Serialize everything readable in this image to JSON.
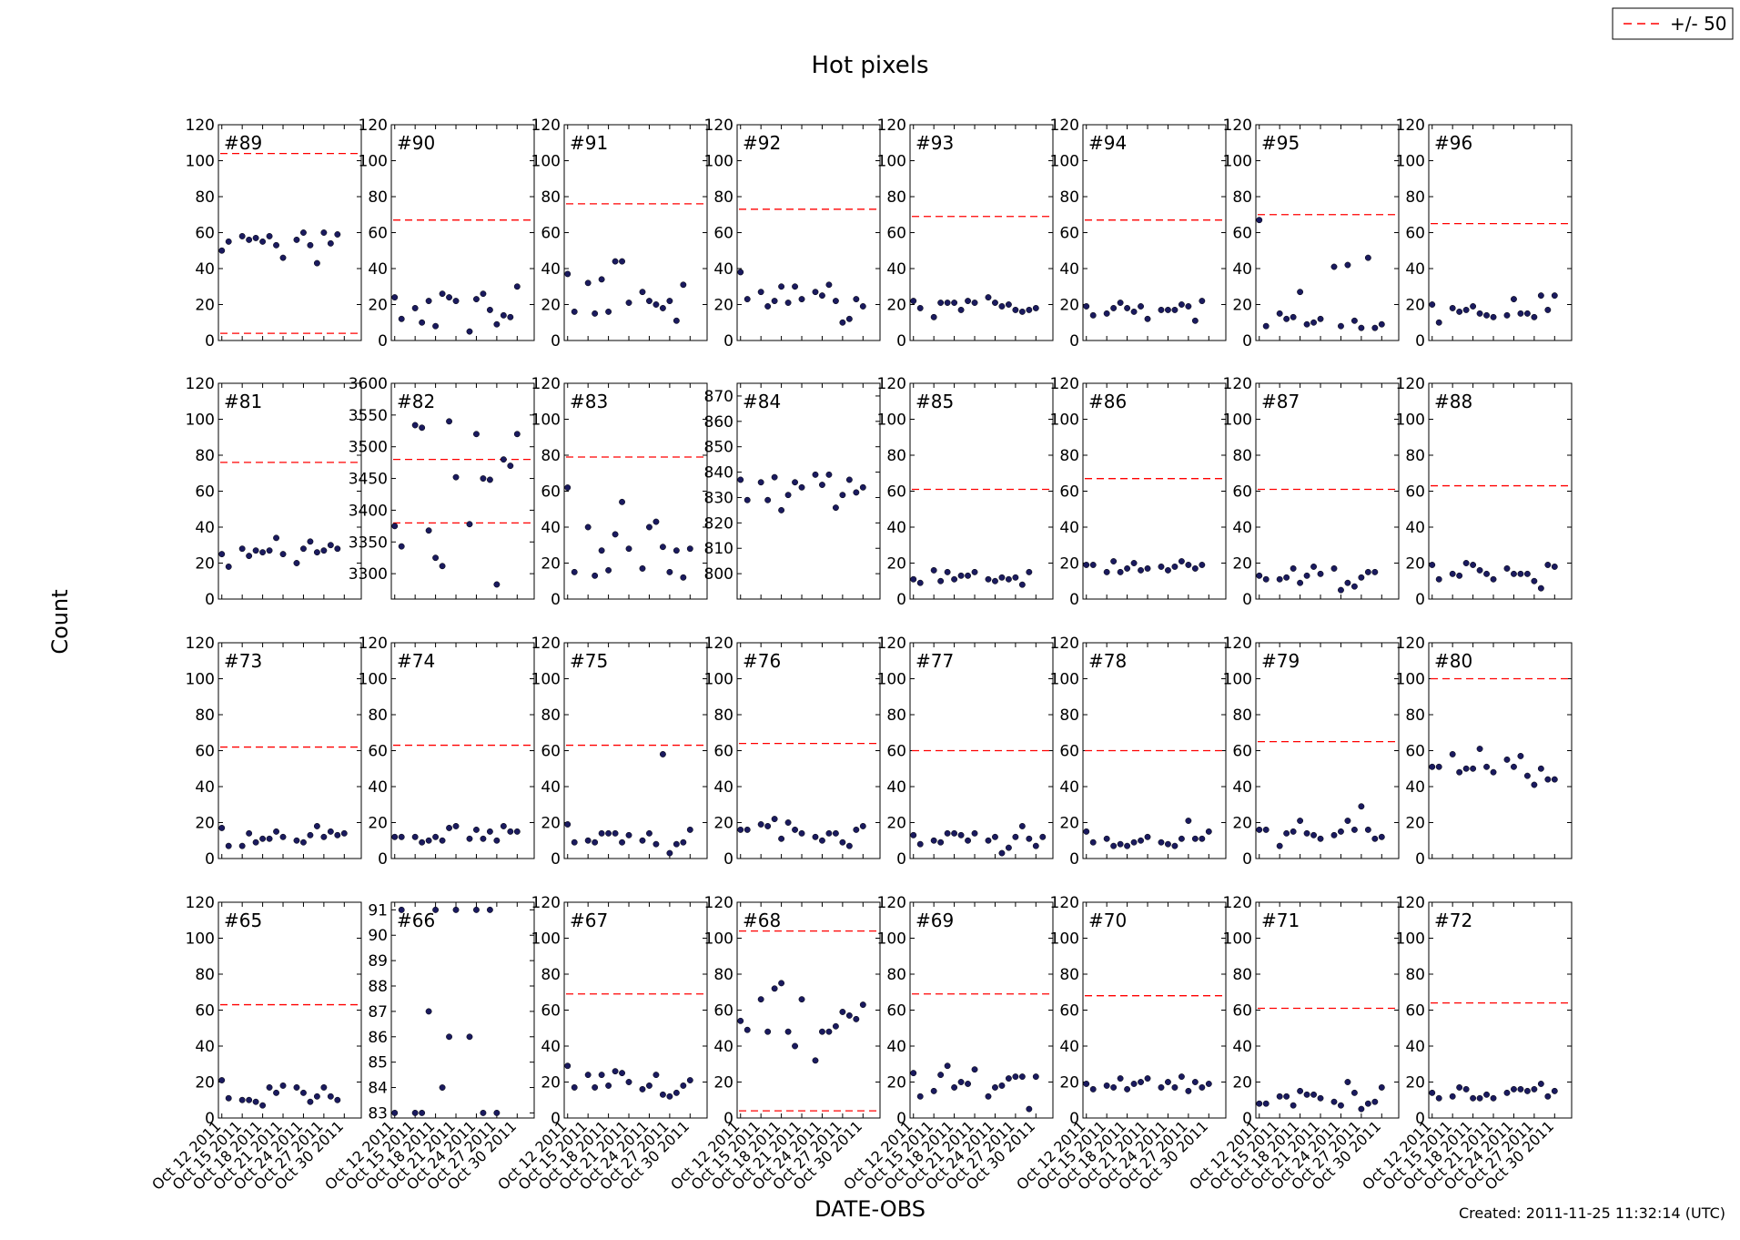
{
  "title": "Hot pixels",
  "ylabel": "Count",
  "xlabel": "DATE-OBS",
  "footer": "Created: 2011-11-25 11:32:14 (UTC)",
  "legend": {
    "label": "+/- 50",
    "line_color": "#ff0000",
    "placement": "top-right"
  },
  "colors": {
    "point": "#1a1a5e",
    "limit": "#ff0000"
  },
  "chart_data": {
    "type": "scatter",
    "grid": false,
    "x_tick_labels": [
      "Oct 12 2011",
      "Oct 15 2011",
      "Oct 18 2011",
      "Oct 21 2011",
      "Oct 24 2011",
      "Oct 27 2011",
      "Oct 30 2011"
    ],
    "x_days": [
      1,
      2,
      4,
      5,
      6,
      7,
      8,
      9,
      10,
      12,
      13,
      14,
      15,
      16,
      17,
      18,
      19,
      20,
      21
    ],
    "panels": [
      {
        "name": "#89",
        "ylim": [
          0,
          120
        ],
        "yticks": [
          0,
          20,
          40,
          60,
          80,
          100,
          120
        ],
        "limits": [
          104,
          4
        ],
        "values": [
          50,
          55,
          58,
          56,
          57,
          55,
          58,
          53,
          46,
          56,
          60,
          53,
          43,
          60,
          54,
          59
        ]
      },
      {
        "name": "#90",
        "ylim": [
          0,
          120
        ],
        "yticks": [
          0,
          20,
          40,
          60,
          80,
          100,
          120
        ],
        "limits": [
          67
        ],
        "values": [
          24,
          12,
          18,
          10,
          22,
          8,
          26,
          24,
          22,
          5,
          23,
          26,
          17,
          9,
          14,
          13,
          30
        ]
      },
      {
        "name": "#91",
        "ylim": [
          0,
          120
        ],
        "yticks": [
          0,
          20,
          40,
          60,
          80,
          100,
          120
        ],
        "limits": [
          76
        ],
        "values": [
          37,
          16,
          32,
          15,
          34,
          16,
          44,
          44,
          21,
          27,
          22,
          20,
          18,
          22,
          11,
          31
        ]
      },
      {
        "name": "#92",
        "ylim": [
          0,
          120
        ],
        "yticks": [
          0,
          20,
          40,
          60,
          80,
          100,
          120
        ],
        "limits": [
          73
        ],
        "values": [
          38,
          23,
          27,
          19,
          22,
          30,
          21,
          30,
          23,
          27,
          25,
          31,
          22,
          10,
          12,
          23,
          19
        ]
      },
      {
        "name": "#93",
        "ylim": [
          0,
          120
        ],
        "yticks": [
          0,
          20,
          40,
          60,
          80,
          100,
          120
        ],
        "limits": [
          69
        ],
        "values": [
          22,
          18,
          13,
          21,
          21,
          21,
          17,
          22,
          21,
          24,
          21,
          19,
          20,
          17,
          16,
          17,
          18
        ]
      },
      {
        "name": "#94",
        "ylim": [
          0,
          120
        ],
        "yticks": [
          0,
          20,
          40,
          60,
          80,
          100,
          120
        ],
        "limits": [
          67
        ],
        "values": [
          19,
          14,
          15,
          18,
          21,
          18,
          16,
          19,
          12,
          17,
          17,
          17,
          20,
          19,
          11,
          22
        ]
      },
      {
        "name": "#95",
        "ylim": [
          0,
          120
        ],
        "yticks": [
          0,
          20,
          40,
          60,
          80,
          100,
          120
        ],
        "limits": [
          70
        ],
        "values": [
          67,
          8,
          15,
          12,
          13,
          27,
          9,
          10,
          12,
          41,
          8,
          42,
          11,
          7,
          46,
          7,
          9
        ]
      },
      {
        "name": "#96",
        "ylim": [
          0,
          120
        ],
        "yticks": [
          0,
          20,
          40,
          60,
          80,
          100,
          120
        ],
        "limits": [
          65
        ],
        "values": [
          20,
          10,
          18,
          16,
          17,
          19,
          15,
          14,
          13,
          14,
          23,
          15,
          15,
          13,
          25,
          17,
          25
        ]
      },
      {
        "name": "#81",
        "ylim": [
          0,
          120
        ],
        "yticks": [
          0,
          20,
          40,
          60,
          80,
          100,
          120
        ],
        "limits": [
          76
        ],
        "values": [
          25,
          18,
          28,
          24,
          27,
          26,
          27,
          34,
          25,
          20,
          28,
          32,
          26,
          27,
          30,
          28
        ]
      },
      {
        "name": "#82",
        "ylim": [
          3260,
          3600
        ],
        "yticks": [
          3300,
          3350,
          3400,
          3450,
          3500,
          3550,
          3600
        ],
        "limits": [
          3480,
          3380
        ],
        "values": [
          3375,
          3343,
          3534,
          3530,
          3368,
          3325,
          3312,
          3540,
          3452,
          3378,
          3520,
          3450,
          3448,
          3283,
          3480,
          3470,
          3520
        ]
      },
      {
        "name": "#83",
        "ylim": [
          0,
          120
        ],
        "yticks": [
          0,
          20,
          40,
          60,
          80,
          100,
          120
        ],
        "limits": [
          79
        ],
        "values": [
          62,
          15,
          40,
          13,
          27,
          16,
          36,
          54,
          28,
          17,
          40,
          43,
          29,
          15,
          27,
          12,
          28
        ]
      },
      {
        "name": "#84",
        "ylim": [
          790,
          875
        ],
        "yticks": [
          800,
          810,
          820,
          830,
          840,
          850,
          860,
          870
        ],
        "limits": [],
        "values": [
          837,
          829,
          836,
          829,
          838,
          825,
          831,
          836,
          834,
          839,
          835,
          839,
          826,
          831,
          837,
          832,
          834
        ]
      },
      {
        "name": "#85",
        "ylim": [
          0,
          120
        ],
        "yticks": [
          0,
          20,
          40,
          60,
          80,
          100,
          120
        ],
        "limits": [
          61
        ],
        "values": [
          11,
          9,
          16,
          10,
          15,
          11,
          13,
          13,
          15,
          11,
          10,
          12,
          11,
          12,
          8,
          15
        ]
      },
      {
        "name": "#86",
        "ylim": [
          0,
          120
        ],
        "yticks": [
          0,
          20,
          40,
          60,
          80,
          100,
          120
        ],
        "limits": [
          67
        ],
        "values": [
          19,
          19,
          15,
          21,
          15,
          17,
          20,
          16,
          17,
          18,
          16,
          18,
          21,
          19,
          17,
          19
        ]
      },
      {
        "name": "#87",
        "ylim": [
          0,
          120
        ],
        "yticks": [
          0,
          20,
          40,
          60,
          80,
          100,
          120
        ],
        "limits": [
          61
        ],
        "values": [
          13,
          11,
          11,
          12,
          17,
          9,
          13,
          18,
          14,
          17,
          5,
          9,
          7,
          12,
          15,
          15
        ]
      },
      {
        "name": "#88",
        "ylim": [
          0,
          120
        ],
        "yticks": [
          0,
          20,
          40,
          60,
          80,
          100,
          120
        ],
        "limits": [
          63
        ],
        "values": [
          19,
          11,
          14,
          13,
          20,
          19,
          16,
          14,
          11,
          17,
          14,
          14,
          14,
          10,
          6,
          19,
          18
        ]
      },
      {
        "name": "#73",
        "ylim": [
          0,
          120
        ],
        "yticks": [
          0,
          20,
          40,
          60,
          80,
          100,
          120
        ],
        "limits": [
          62
        ],
        "values": [
          17,
          7,
          7,
          14,
          9,
          11,
          11,
          15,
          12,
          10,
          9,
          13,
          18,
          12,
          15,
          13,
          14
        ]
      },
      {
        "name": "#74",
        "ylim": [
          0,
          120
        ],
        "yticks": [
          0,
          20,
          40,
          60,
          80,
          100,
          120
        ],
        "limits": [
          63
        ],
        "values": [
          12,
          12,
          12,
          9,
          10,
          12,
          10,
          17,
          18,
          11,
          16,
          11,
          15,
          10,
          18,
          15,
          15
        ]
      },
      {
        "name": "#75",
        "ylim": [
          0,
          120
        ],
        "yticks": [
          0,
          20,
          40,
          60,
          80,
          100,
          120
        ],
        "limits": [
          63
        ],
        "values": [
          19,
          9,
          10,
          9,
          14,
          14,
          14,
          9,
          13,
          10,
          14,
          8,
          58,
          3,
          8,
          9,
          16
        ]
      },
      {
        "name": "#76",
        "ylim": [
          0,
          120
        ],
        "yticks": [
          0,
          20,
          40,
          60,
          80,
          100,
          120
        ],
        "limits": [
          64
        ],
        "values": [
          16,
          16,
          19,
          18,
          22,
          11,
          20,
          16,
          14,
          12,
          10,
          14,
          14,
          9,
          7,
          16,
          18
        ]
      },
      {
        "name": "#77",
        "ylim": [
          0,
          120
        ],
        "yticks": [
          0,
          20,
          40,
          60,
          80,
          100,
          120
        ],
        "limits": [
          60
        ],
        "values": [
          13,
          8,
          10,
          9,
          14,
          14,
          13,
          10,
          14,
          10,
          12,
          3,
          6,
          12,
          18,
          11,
          7,
          12
        ]
      },
      {
        "name": "#78",
        "ylim": [
          0,
          120
        ],
        "yticks": [
          0,
          20,
          40,
          60,
          80,
          100,
          120
        ],
        "limits": [
          60
        ],
        "values": [
          15,
          9,
          11,
          7,
          8,
          7,
          9,
          10,
          12,
          9,
          8,
          7,
          11,
          21,
          11,
          11,
          15
        ]
      },
      {
        "name": "#79",
        "ylim": [
          0,
          120
        ],
        "yticks": [
          0,
          20,
          40,
          60,
          80,
          100,
          120
        ],
        "limits": [
          65
        ],
        "values": [
          16,
          16,
          7,
          14,
          15,
          21,
          14,
          13,
          11,
          13,
          15,
          21,
          16,
          29,
          16,
          11,
          12
        ]
      },
      {
        "name": "#80",
        "ylim": [
          0,
          120
        ],
        "yticks": [
          0,
          20,
          40,
          60,
          80,
          100,
          120
        ],
        "limits": [
          100
        ],
        "values": [
          51,
          51,
          58,
          48,
          50,
          50,
          61,
          51,
          48,
          55,
          51,
          57,
          46,
          41,
          50,
          44,
          44
        ]
      },
      {
        "name": "#65",
        "ylim": [
          0,
          120
        ],
        "yticks": [
          0,
          20,
          40,
          60,
          80,
          100,
          120
        ],
        "limits": [
          63
        ],
        "values": [
          21,
          11,
          10,
          10,
          9,
          7,
          17,
          14,
          18,
          17,
          14,
          9,
          12,
          17,
          12,
          10
        ]
      },
      {
        "name": "#66",
        "ylim": [
          82.8,
          91.3
        ],
        "yticks": [
          83,
          84,
          85,
          86,
          87,
          88,
          89,
          90,
          91
        ],
        "limits": [],
        "values": [
          83,
          91,
          83,
          83,
          87,
          91,
          84,
          86,
          91,
          86,
          91,
          83,
          91,
          83
        ]
      },
      {
        "name": "#67",
        "ylim": [
          0,
          120
        ],
        "yticks": [
          0,
          20,
          40,
          60,
          80,
          100,
          120
        ],
        "limits": [
          69
        ],
        "values": [
          29,
          17,
          24,
          17,
          24,
          18,
          26,
          25,
          20,
          16,
          18,
          24,
          13,
          12,
          14,
          18,
          21
        ]
      },
      {
        "name": "#68",
        "ylim": [
          0,
          120
        ],
        "yticks": [
          0,
          20,
          40,
          60,
          80,
          100,
          120
        ],
        "limits": [
          104,
          4
        ],
        "values": [
          54,
          49,
          66,
          48,
          72,
          75,
          48,
          40,
          66,
          32,
          48,
          48,
          51,
          59,
          57,
          55,
          63
        ]
      },
      {
        "name": "#69",
        "ylim": [
          0,
          120
        ],
        "yticks": [
          0,
          20,
          40,
          60,
          80,
          100,
          120
        ],
        "limits": [
          69
        ],
        "values": [
          25,
          12,
          15,
          24,
          29,
          17,
          20,
          19,
          27,
          12,
          17,
          18,
          22,
          23,
          23,
          5,
          23
        ]
      },
      {
        "name": "#70",
        "ylim": [
          0,
          120
        ],
        "yticks": [
          0,
          20,
          40,
          60,
          80,
          100,
          120
        ],
        "limits": [
          68
        ],
        "values": [
          19,
          16,
          18,
          17,
          22,
          16,
          19,
          20,
          22,
          17,
          20,
          17,
          23,
          15,
          20,
          17,
          19
        ]
      },
      {
        "name": "#71",
        "ylim": [
          0,
          120
        ],
        "yticks": [
          0,
          20,
          40,
          60,
          80,
          100,
          120
        ],
        "limits": [
          61
        ],
        "values": [
          8,
          8,
          12,
          12,
          7,
          15,
          13,
          13,
          11,
          9,
          7,
          20,
          14,
          5,
          8,
          9,
          17
        ]
      },
      {
        "name": "#72",
        "ylim": [
          0,
          120
        ],
        "yticks": [
          0,
          20,
          40,
          60,
          80,
          100,
          120
        ],
        "limits": [
          64
        ],
        "values": [
          14,
          11,
          12,
          17,
          16,
          11,
          11,
          13,
          11,
          14,
          16,
          16,
          15,
          16,
          19,
          12,
          15
        ]
      }
    ]
  }
}
